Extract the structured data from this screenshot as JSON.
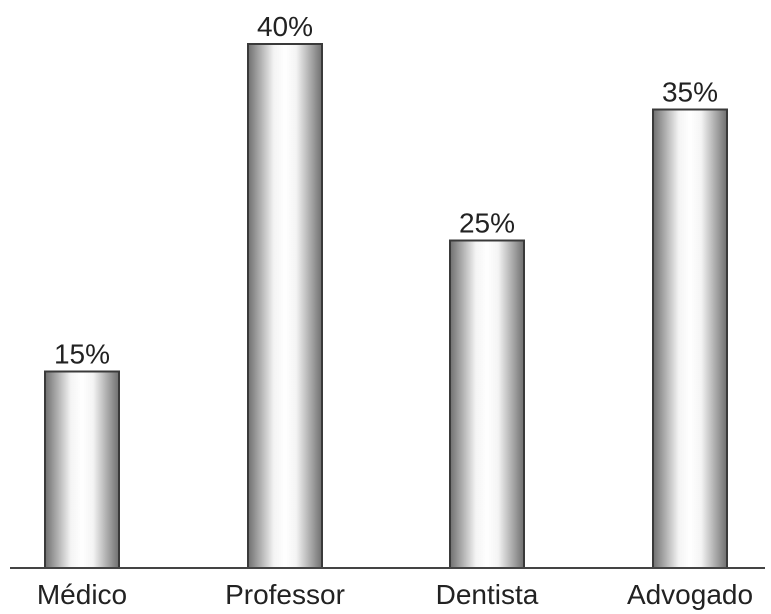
{
  "chart_data": {
    "type": "bar",
    "categories": [
      "Médico",
      "Professor",
      "Dentista",
      "Advogado"
    ],
    "values": [
      15,
      40,
      25,
      35
    ],
    "value_labels": [
      "15%",
      "40%",
      "25%",
      "35%"
    ],
    "unit": "%",
    "title": "",
    "xlabel": "",
    "ylabel": "",
    "ylim": [
      0,
      40
    ],
    "grid": false,
    "legend": "none",
    "bar_style": "metallic gray gradient",
    "colors": {
      "bar_dark": "#6f6f6f",
      "bar_light": "#f4f4f4",
      "outline": "#3a3a3a",
      "text": "#222222"
    }
  }
}
